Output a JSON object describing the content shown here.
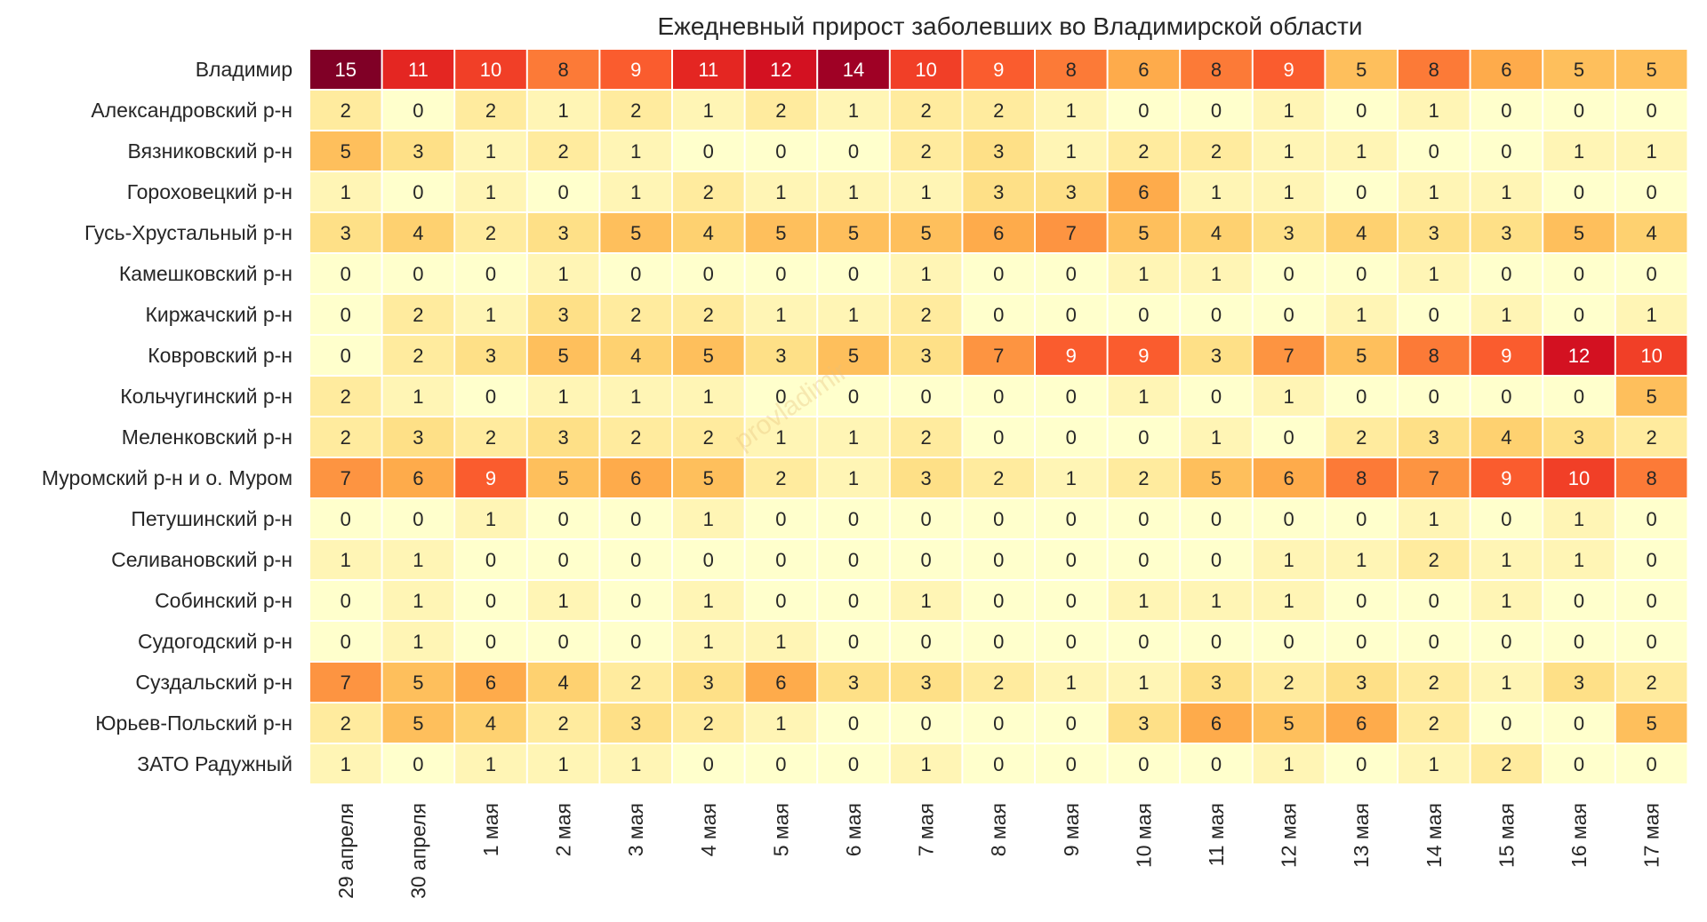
{
  "chart_data": {
    "type": "heatmap",
    "title": "Ежедневный прирост заболевших во Владимирской области",
    "watermark": "provladimir",
    "xlabel": "",
    "ylabel": "",
    "rows": [
      "Владимир",
      "Александровский р-н",
      "Вязниковский р-н",
      "Гороховецкий р-н",
      "Гусь-Хрустальный р-н",
      "Камешковский р-н",
      "Киржачский р-н",
      "Ковровский р-н",
      "Кольчугинский р-н",
      "Меленковский р-н",
      "Муромский р-н и о. Муром",
      "Петушинский р-н",
      "Селивановский р-н",
      "Собинский р-н",
      "Судогодский р-н",
      "Суздальский р-н",
      "Юрьев-Польский р-н",
      "ЗАТО Радужный"
    ],
    "columns": [
      "29 апреля",
      "30 апреля",
      "1 мая",
      "2 мая",
      "3 мая",
      "4 мая",
      "5 мая",
      "6 мая",
      "7 мая",
      "8 мая",
      "9 мая",
      "10 мая",
      "11 мая",
      "12 мая",
      "13 мая",
      "14 мая",
      "15 мая",
      "16 мая",
      "17 мая"
    ],
    "values": [
      [
        15,
        11,
        10,
        8,
        9,
        11,
        12,
        14,
        10,
        9,
        8,
        6,
        8,
        9,
        5,
        8,
        6,
        5,
        5
      ],
      [
        2,
        0,
        2,
        1,
        2,
        1,
        2,
        1,
        2,
        2,
        1,
        0,
        0,
        1,
        0,
        1,
        0,
        0,
        0
      ],
      [
        5,
        3,
        1,
        2,
        1,
        0,
        0,
        0,
        2,
        3,
        1,
        2,
        2,
        1,
        1,
        0,
        0,
        1,
        1
      ],
      [
        1,
        0,
        1,
        0,
        1,
        2,
        1,
        1,
        1,
        3,
        3,
        6,
        1,
        1,
        0,
        1,
        1,
        0,
        0
      ],
      [
        3,
        4,
        2,
        3,
        5,
        4,
        5,
        5,
        5,
        6,
        7,
        5,
        4,
        3,
        4,
        3,
        3,
        5,
        4
      ],
      [
        0,
        0,
        0,
        1,
        0,
        0,
        0,
        0,
        1,
        0,
        0,
        1,
        1,
        0,
        0,
        1,
        0,
        0,
        0
      ],
      [
        0,
        2,
        1,
        3,
        2,
        2,
        1,
        1,
        2,
        0,
        0,
        0,
        0,
        0,
        1,
        0,
        1,
        0,
        1
      ],
      [
        0,
        2,
        3,
        5,
        4,
        5,
        3,
        5,
        3,
        7,
        9,
        9,
        3,
        7,
        5,
        8,
        9,
        12,
        10
      ],
      [
        2,
        1,
        0,
        1,
        1,
        1,
        0,
        0,
        0,
        0,
        0,
        1,
        0,
        1,
        0,
        0,
        0,
        0,
        5
      ],
      [
        2,
        3,
        2,
        3,
        2,
        2,
        1,
        1,
        2,
        0,
        0,
        0,
        1,
        0,
        2,
        3,
        4,
        3,
        2
      ],
      [
        7,
        6,
        9,
        5,
        6,
        5,
        2,
        1,
        3,
        2,
        1,
        2,
        5,
        6,
        8,
        7,
        9,
        10,
        8
      ],
      [
        0,
        0,
        1,
        0,
        0,
        1,
        0,
        0,
        0,
        0,
        0,
        0,
        0,
        0,
        0,
        1,
        0,
        1,
        0
      ],
      [
        1,
        1,
        0,
        0,
        0,
        0,
        0,
        0,
        0,
        0,
        0,
        0,
        0,
        1,
        1,
        2,
        1,
        1,
        0
      ],
      [
        0,
        1,
        0,
        1,
        0,
        1,
        0,
        0,
        1,
        0,
        0,
        1,
        1,
        1,
        0,
        0,
        1,
        0,
        0
      ],
      [
        0,
        1,
        0,
        0,
        0,
        1,
        1,
        0,
        0,
        0,
        0,
        0,
        0,
        0,
        0,
        0,
        0,
        0,
        0
      ],
      [
        7,
        5,
        6,
        4,
        2,
        3,
        6,
        3,
        3,
        2,
        1,
        1,
        3,
        2,
        3,
        2,
        1,
        3,
        2
      ],
      [
        2,
        5,
        4,
        2,
        3,
        2,
        1,
        0,
        0,
        0,
        0,
        3,
        6,
        5,
        6,
        2,
        0,
        0,
        5
      ],
      [
        1,
        0,
        1,
        1,
        1,
        0,
        0,
        0,
        1,
        0,
        0,
        0,
        0,
        1,
        0,
        1,
        2,
        0,
        0
      ]
    ],
    "vmin": 0,
    "vmax": 15,
    "colormap": [
      "#ffffcc",
      "#fff0a9",
      "#fee087",
      "#fec965",
      "#feab4b",
      "#fd893c",
      "#fa5c2e",
      "#ec3023",
      "#d31121",
      "#af0225",
      "#800026"
    ],
    "annotations": true,
    "grid": false
  }
}
